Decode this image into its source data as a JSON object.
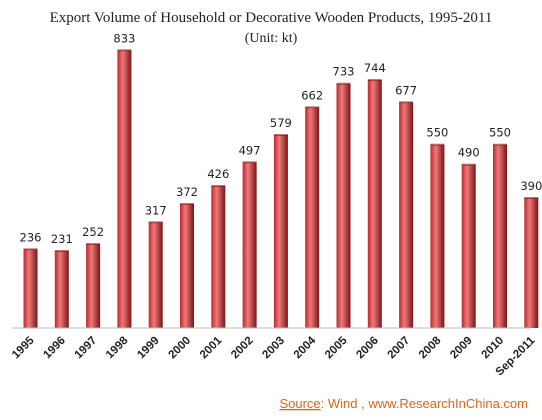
{
  "chart_data": {
    "type": "bar",
    "title": "Export Volume of Household or Decorative Wooden Products, 1995-2011",
    "subtitle": "(Unit: kt)",
    "categories": [
      "1995",
      "1996",
      "1997",
      "1998",
      "1999",
      "2000",
      "2001",
      "2002",
      "2003",
      "2004",
      "2005",
      "2006",
      "2007",
      "2008",
      "2009",
      "2010",
      "Sep-2011"
    ],
    "values": [
      236,
      231,
      252,
      833,
      317,
      372,
      426,
      497,
      579,
      662,
      733,
      744,
      677,
      550,
      490,
      550,
      390
    ],
    "data_labels": [
      "236",
      "231",
      "252",
      "833",
      "317",
      "372",
      "426",
      "497",
      "579",
      "662",
      "733",
      "744",
      "677",
      "550",
      "490",
      "550",
      "390"
    ],
    "xlabel": "",
    "ylabel": "",
    "ylim": [
      0,
      900
    ],
    "grid": false,
    "legend": "none",
    "bar_color": "#c0282b",
    "bar_highlight": "#ef7a7a",
    "bar_shadow": "#7a1416"
  },
  "source": {
    "label": "Source",
    "text": ": Wind , www.ResearchInChina.com",
    "color": "#d9661f"
  }
}
